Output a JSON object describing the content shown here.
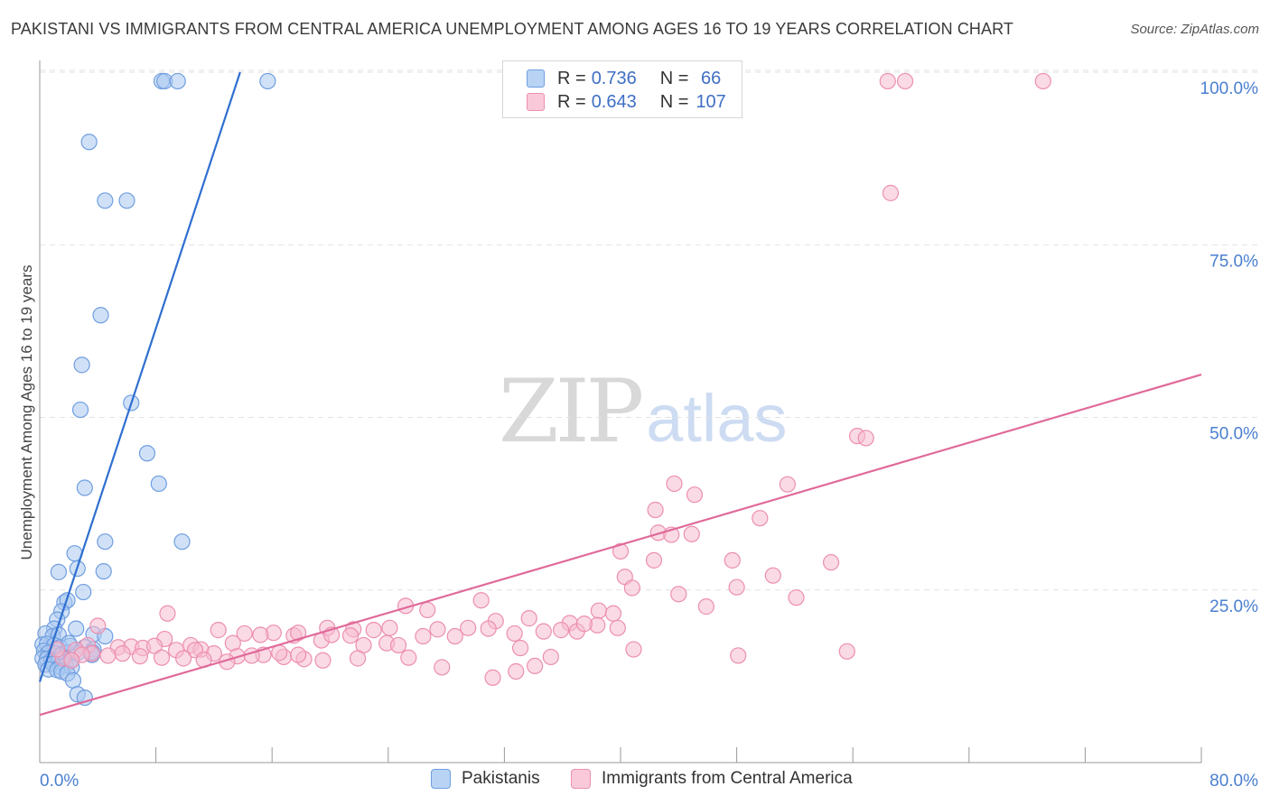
{
  "title": "PAKISTANI VS IMMIGRANTS FROM CENTRAL AMERICA UNEMPLOYMENT AMONG AGES 16 TO 19 YEARS CORRELATION CHART",
  "source": "Source: ZipAtlas.com",
  "watermark": {
    "zip": "ZIP",
    "atlas": "atlas"
  },
  "legend": {
    "rows": [
      {
        "r_label": "R = ",
        "r_value": "0.736",
        "n_label": "N = ",
        "n_value": " 66"
      },
      {
        "r_label": "R = ",
        "r_value": "0.643",
        "n_label": "N = ",
        "n_value": "107"
      }
    ]
  },
  "bottom_legend": {
    "series1": "Pakistanis",
    "series2": "Immigrants from Central America"
  },
  "colors": {
    "blue_fill": "#a9c8f0",
    "blue_stroke": "#6f9ee0",
    "blue_line": "#2f6fd0",
    "pink_fill": "#f6bcd0",
    "pink_stroke": "#ec8fb0",
    "pink_line": "#e0699a",
    "tick_color": "#4a7fd0"
  },
  "chart_data": {
    "type": "scatter",
    "title": "PAKISTANI VS IMMIGRANTS FROM CENTRAL AMERICA UNEMPLOYMENT AMONG AGES 16 TO 19 YEARS CORRELATION CHART",
    "xlabel": "",
    "ylabel": "Unemployment Among Ages 16 to 19 years",
    "xlim": [
      0,
      80
    ],
    "ylim": [
      0,
      102
    ],
    "x_tick_labels": [
      "0.0%",
      "80.0%"
    ],
    "y_ticks": [
      25,
      50,
      75,
      100
    ],
    "y_tick_labels": [
      "25.0%",
      "50.0%",
      "75.0%",
      "100.0%"
    ],
    "grid": true,
    "series": [
      {
        "name": "Pakistanis",
        "R": 0.736,
        "N": 66,
        "trend": {
          "x0": 0,
          "y0": 11.7,
          "x1": 13.8,
          "y1": 100
        },
        "points": [
          [
            8.4,
            98.7
          ],
          [
            8.6,
            98.7
          ],
          [
            9.5,
            98.7
          ],
          [
            15.7,
            98.7
          ],
          [
            3.4,
            89.9
          ],
          [
            4.5,
            81.4
          ],
          [
            6.0,
            81.4
          ],
          [
            4.2,
            64.8
          ],
          [
            2.9,
            57.6
          ],
          [
            6.3,
            52.1
          ],
          [
            2.8,
            51.1
          ],
          [
            7.4,
            44.8
          ],
          [
            8.2,
            40.4
          ],
          [
            3.1,
            39.8
          ],
          [
            4.5,
            32.0
          ],
          [
            9.8,
            32.0
          ],
          [
            2.4,
            30.3
          ],
          [
            2.6,
            28.1
          ],
          [
            4.4,
            27.7
          ],
          [
            1.3,
            27.6
          ],
          [
            3.0,
            24.7
          ],
          [
            1.7,
            23.2
          ],
          [
            1.9,
            23.5
          ],
          [
            1.5,
            21.9
          ],
          [
            1.2,
            20.7
          ],
          [
            1.0,
            19.4
          ],
          [
            2.5,
            19.4
          ],
          [
            3.7,
            18.6
          ],
          [
            4.5,
            18.3
          ],
          [
            0.4,
            18.7
          ],
          [
            0.9,
            18.3
          ],
          [
            1.3,
            18.5
          ],
          [
            0.2,
            17.1
          ],
          [
            0.5,
            17.2
          ],
          [
            1.0,
            17.0
          ],
          [
            1.4,
            16.7
          ],
          [
            2.1,
            16.9
          ],
          [
            3.1,
            16.7
          ],
          [
            3.7,
            16.4
          ],
          [
            0.3,
            16.2
          ],
          [
            0.6,
            15.9
          ],
          [
            1.1,
            15.8
          ],
          [
            1.5,
            15.6
          ],
          [
            1.9,
            15.9
          ],
          [
            2.6,
            15.9
          ],
          [
            3.6,
            15.6
          ],
          [
            0.2,
            15.1
          ],
          [
            0.5,
            15.0
          ],
          [
            0.8,
            14.8
          ],
          [
            1.3,
            14.7
          ],
          [
            1.6,
            14.9
          ],
          [
            2.1,
            14.8
          ],
          [
            0.4,
            14.2
          ],
          [
            0.9,
            14.3
          ],
          [
            1.4,
            13.9
          ],
          [
            1.8,
            14.1
          ],
          [
            2.2,
            13.8
          ],
          [
            0.6,
            13.5
          ],
          [
            1.2,
            13.4
          ],
          [
            1.5,
            13.2
          ],
          [
            1.9,
            12.9
          ],
          [
            2.3,
            11.9
          ],
          [
            2.6,
            9.9
          ],
          [
            3.1,
            9.4
          ],
          [
            3.6,
            16.0
          ],
          [
            2.0,
            17.3
          ]
        ]
      },
      {
        "name": "Immigrants from Central America",
        "R": 0.643,
        "N": 107,
        "trend": {
          "x0": 0,
          "y0": 6.9,
          "x1": 80,
          "y1": 56.2
        },
        "points": [
          [
            58.4,
            98.7
          ],
          [
            59.6,
            98.7
          ],
          [
            69.1,
            98.7
          ],
          [
            58.6,
            82.5
          ],
          [
            56.3,
            47.3
          ],
          [
            56.9,
            47.0
          ],
          [
            43.7,
            40.4
          ],
          [
            45.1,
            38.8
          ],
          [
            51.5,
            40.3
          ],
          [
            42.4,
            36.6
          ],
          [
            42.6,
            33.3
          ],
          [
            49.6,
            35.4
          ],
          [
            43.5,
            33.0
          ],
          [
            44.9,
            33.1
          ],
          [
            40.0,
            30.6
          ],
          [
            47.7,
            29.3
          ],
          [
            42.3,
            29.3
          ],
          [
            54.5,
            29.0
          ],
          [
            40.3,
            26.9
          ],
          [
            40.8,
            25.3
          ],
          [
            44.0,
            24.4
          ],
          [
            48.0,
            25.4
          ],
          [
            50.5,
            27.1
          ],
          [
            52.1,
            23.9
          ],
          [
            30.4,
            23.5
          ],
          [
            45.9,
            22.6
          ],
          [
            38.5,
            22.0
          ],
          [
            39.5,
            21.6
          ],
          [
            25.2,
            22.7
          ],
          [
            26.7,
            22.1
          ],
          [
            8.8,
            21.6
          ],
          [
            31.4,
            20.5
          ],
          [
            33.7,
            20.9
          ],
          [
            36.5,
            20.2
          ],
          [
            37.0,
            19.0
          ],
          [
            38.4,
            19.9
          ],
          [
            29.5,
            19.5
          ],
          [
            30.9,
            19.4
          ],
          [
            12.3,
            19.2
          ],
          [
            14.1,
            18.7
          ],
          [
            16.1,
            18.8
          ],
          [
            17.5,
            18.4
          ],
          [
            19.8,
            19.5
          ],
          [
            21.6,
            19.3
          ],
          [
            23.0,
            19.2
          ],
          [
            24.1,
            19.5
          ],
          [
            26.4,
            18.3
          ],
          [
            27.4,
            19.3
          ],
          [
            28.6,
            18.3
          ],
          [
            32.7,
            18.7
          ],
          [
            34.7,
            19.0
          ],
          [
            35.9,
            19.2
          ],
          [
            37.5,
            20.1
          ],
          [
            39.8,
            19.5
          ],
          [
            4.0,
            19.8
          ],
          [
            8.6,
            17.9
          ],
          [
            10.4,
            17.0
          ],
          [
            11.1,
            16.4
          ],
          [
            13.3,
            17.3
          ],
          [
            15.2,
            18.5
          ],
          [
            17.8,
            18.8
          ],
          [
            19.4,
            17.7
          ],
          [
            20.1,
            18.5
          ],
          [
            21.4,
            18.4
          ],
          [
            22.3,
            17.0
          ],
          [
            23.9,
            17.3
          ],
          [
            24.7,
            17.0
          ],
          [
            3.3,
            17.0
          ],
          [
            5.4,
            16.7
          ],
          [
            6.3,
            16.8
          ],
          [
            7.1,
            16.6
          ],
          [
            7.9,
            16.9
          ],
          [
            9.4,
            16.3
          ],
          [
            10.7,
            16.3
          ],
          [
            12.0,
            15.8
          ],
          [
            13.6,
            15.4
          ],
          [
            15.4,
            15.6
          ],
          [
            16.8,
            15.3
          ],
          [
            18.2,
            15.0
          ],
          [
            19.5,
            14.8
          ],
          [
            3.6,
            15.8
          ],
          [
            4.7,
            15.5
          ],
          [
            5.7,
            15.8
          ],
          [
            6.9,
            15.4
          ],
          [
            8.4,
            15.2
          ],
          [
            9.9,
            15.1
          ],
          [
            11.3,
            14.9
          ],
          [
            12.9,
            14.6
          ],
          [
            14.6,
            15.5
          ],
          [
            16.5,
            15.9
          ],
          [
            17.8,
            15.6
          ],
          [
            21.9,
            15.1
          ],
          [
            25.4,
            15.2
          ],
          [
            33.1,
            16.6
          ],
          [
            40.9,
            16.4
          ],
          [
            48.1,
            15.5
          ],
          [
            55.6,
            16.1
          ],
          [
            27.7,
            13.8
          ],
          [
            31.2,
            12.3
          ],
          [
            32.8,
            13.2
          ],
          [
            34.1,
            14.0
          ],
          [
            35.2,
            15.3
          ],
          [
            2.5,
            16.3
          ],
          [
            2.9,
            15.6
          ],
          [
            1.6,
            15.1
          ],
          [
            1.2,
            16.4
          ],
          [
            2.2,
            14.8
          ]
        ]
      }
    ]
  }
}
